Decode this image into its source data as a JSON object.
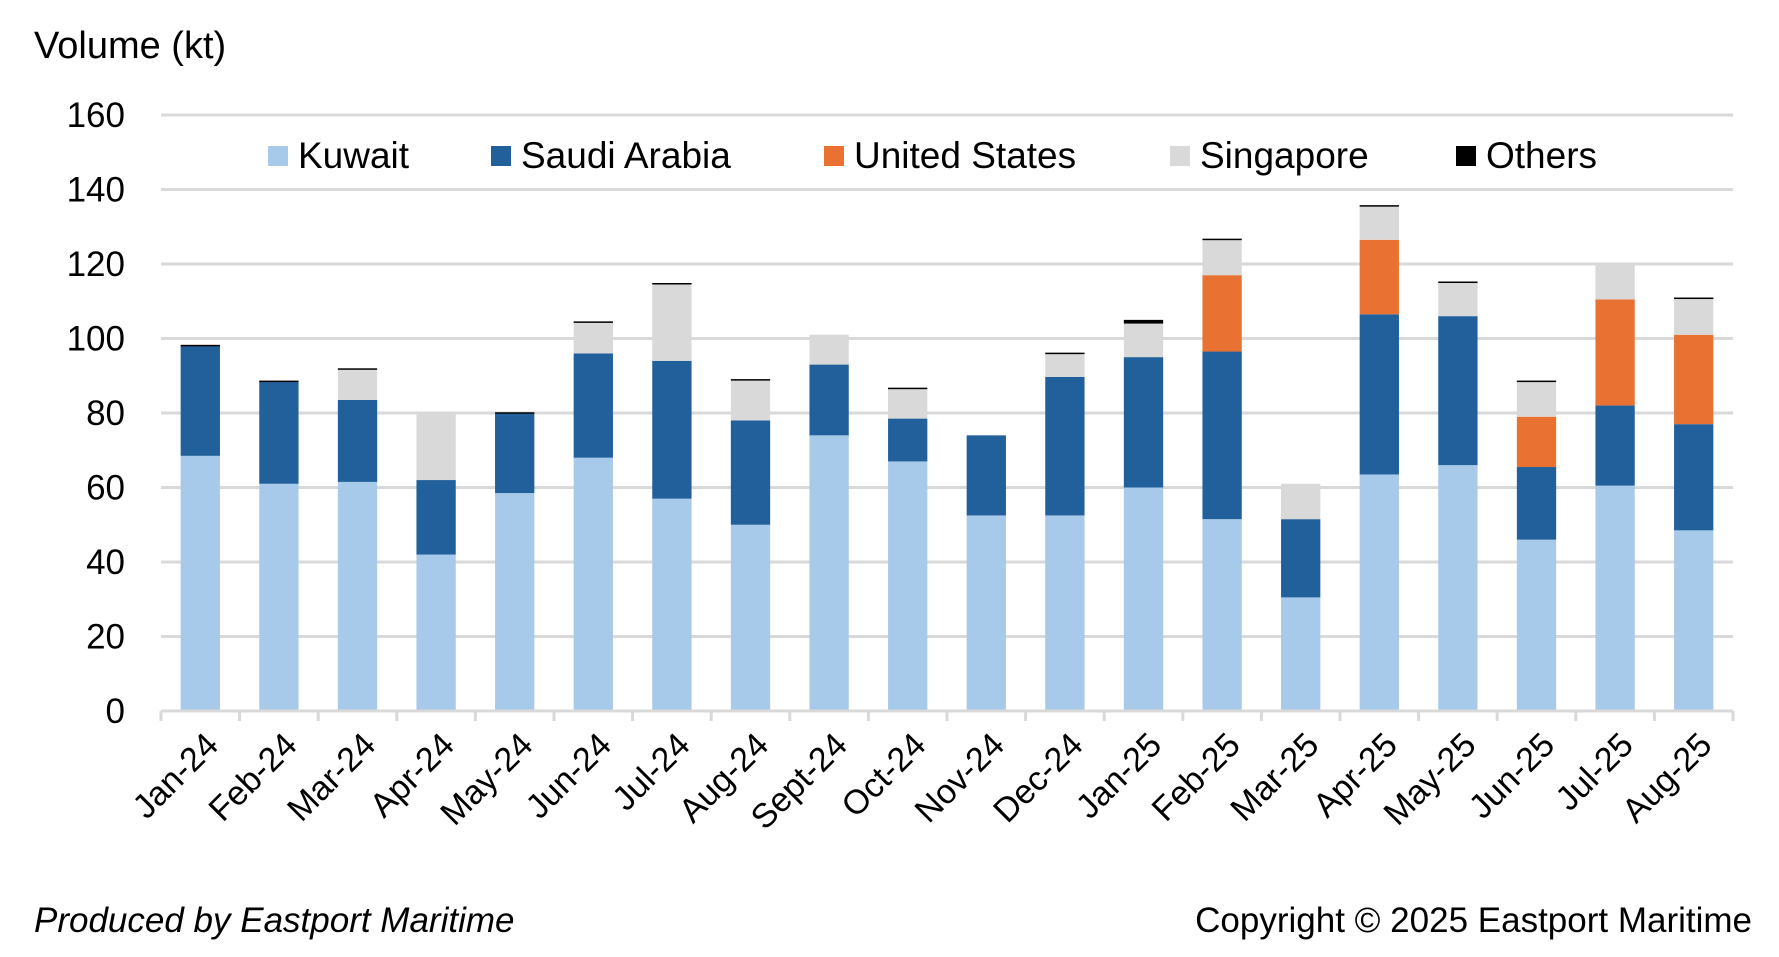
{
  "chart_data": {
    "type": "bar",
    "stacked": true,
    "ylabel": "Volume (kt)",
    "ylim": [
      0,
      160
    ],
    "yticks": [
      0,
      20,
      40,
      60,
      80,
      100,
      120,
      140,
      160
    ],
    "grid": true,
    "legend_position": "top",
    "categories": [
      "Jan-24",
      "Feb-24",
      "Mar-24",
      "Apr-24",
      "May-24",
      "Jun-24",
      "Jul-24",
      "Aug-24",
      "Sept-24",
      "Oct-24",
      "Nov-24",
      "Dec-24",
      "Jan-25",
      "Feb-25",
      "Mar-25",
      "Apr-25",
      "May-25",
      "Jun-25",
      "Jul-25",
      "Aug-25"
    ],
    "series": [
      {
        "name": "Kuwait",
        "color": "#A7CAEB",
        "values": [
          68.5,
          61,
          61.5,
          42,
          58.5,
          68,
          57,
          50,
          74,
          67,
          52.5,
          52.5,
          60,
          51.5,
          30.5,
          63.5,
          66,
          46,
          60.5,
          48.5
        ]
      },
      {
        "name": "Saudi Arabia",
        "color": "#21609B",
        "values": [
          29.5,
          27.5,
          22,
          20,
          21.5,
          28,
          37,
          28,
          19,
          11.5,
          21.5,
          37.2,
          35,
          45,
          21,
          43,
          40,
          19.5,
          21.5,
          28.5
        ]
      },
      {
        "name": "United States",
        "color": "#E97132",
        "values": [
          0,
          0,
          0,
          0,
          0,
          0,
          0,
          0,
          0,
          0,
          0,
          0,
          0,
          20.5,
          0,
          20,
          0,
          13.5,
          28.5,
          24
        ]
      },
      {
        "name": "Singapore",
        "color": "#D9D9D9",
        "values": [
          0,
          0,
          8.2,
          18,
          0,
          8.3,
          20.6,
          10.8,
          8,
          8,
          0,
          6.3,
          9,
          9.5,
          9.5,
          9,
          9,
          9.5,
          9.5,
          9.7
        ]
      },
      {
        "name": "Others",
        "color": "#000000",
        "values": [
          0.3,
          0.2,
          0.3,
          0,
          0.2,
          0.3,
          0.3,
          0.3,
          0,
          0.3,
          0,
          0.2,
          1,
          0.3,
          0,
          0.3,
          0.3,
          0.2,
          0,
          0.3
        ]
      }
    ]
  },
  "footer": {
    "left": "Produced by Eastport Maritime",
    "right": "Copyright © 2025 Eastport Maritime"
  }
}
